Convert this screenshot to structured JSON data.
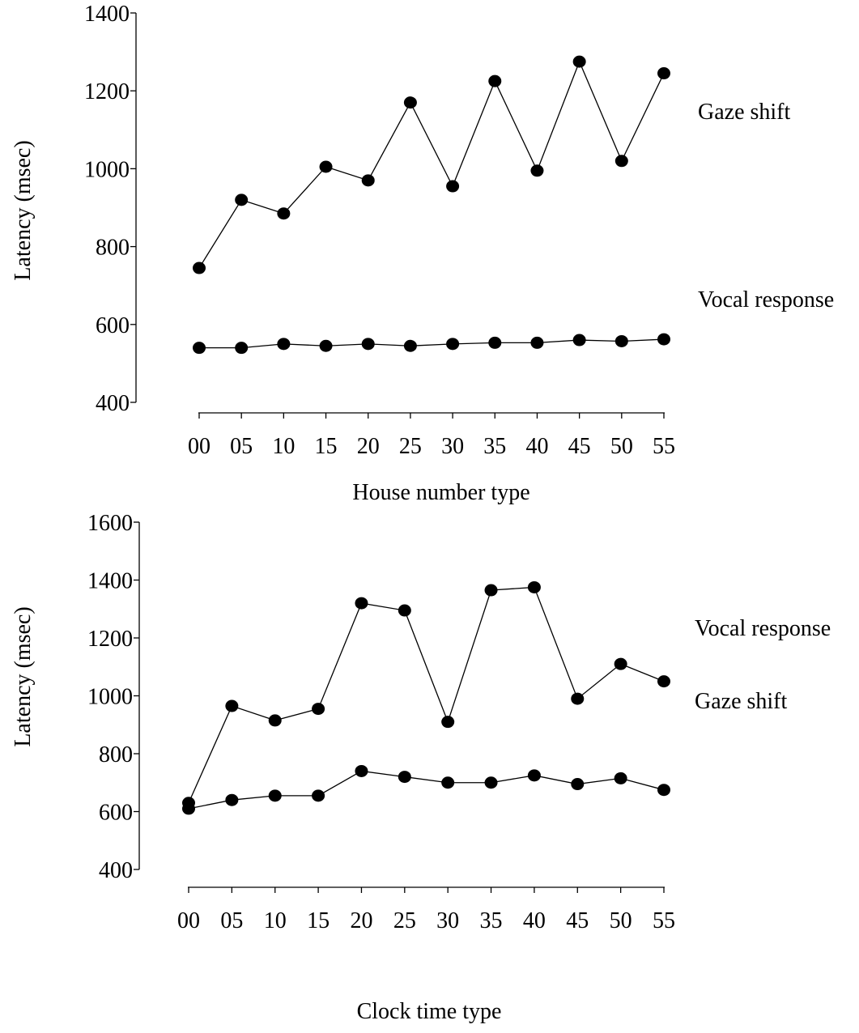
{
  "chart_data": [
    {
      "type": "line",
      "xlabel": "House number type",
      "ylabel": "Latency (msec)",
      "categories": [
        "00",
        "05",
        "10",
        "15",
        "20",
        "25",
        "30",
        "35",
        "40",
        "45",
        "50",
        "55"
      ],
      "ylim": [
        400,
        1400
      ],
      "yticks": [
        "400",
        "600",
        "800",
        "1000",
        "1200",
        "1400"
      ],
      "grid": false,
      "series": [
        {
          "name": "Gaze shift",
          "values": [
            745,
            920,
            885,
            1005,
            970,
            1170,
            955,
            1225,
            995,
            1275,
            1020,
            1245
          ]
        },
        {
          "name": "Vocal response",
          "values": [
            540,
            540,
            550,
            545,
            550,
            545,
            550,
            553,
            553,
            560,
            557,
            562
          ]
        }
      ]
    },
    {
      "type": "line",
      "xlabel": "Clock time type",
      "ylabel": "Latency (msec)",
      "categories": [
        "00",
        "05",
        "10",
        "15",
        "20",
        "25",
        "30",
        "35",
        "40",
        "45",
        "50",
        "55"
      ],
      "ylim": [
        400,
        1600
      ],
      "yticks": [
        "400",
        "600",
        "800",
        "1000",
        "1200",
        "1400",
        "1600"
      ],
      "grid": false,
      "series": [
        {
          "name": "Gaze shift",
          "values": [
            630,
            965,
            915,
            955,
            1320,
            1295,
            910,
            1365,
            1375,
            990,
            1110,
            1050
          ]
        },
        {
          "name": "Vocal response",
          "values": [
            610,
            640,
            655,
            655,
            740,
            720,
            700,
            700,
            725,
            695,
            715,
            675
          ]
        }
      ]
    }
  ]
}
